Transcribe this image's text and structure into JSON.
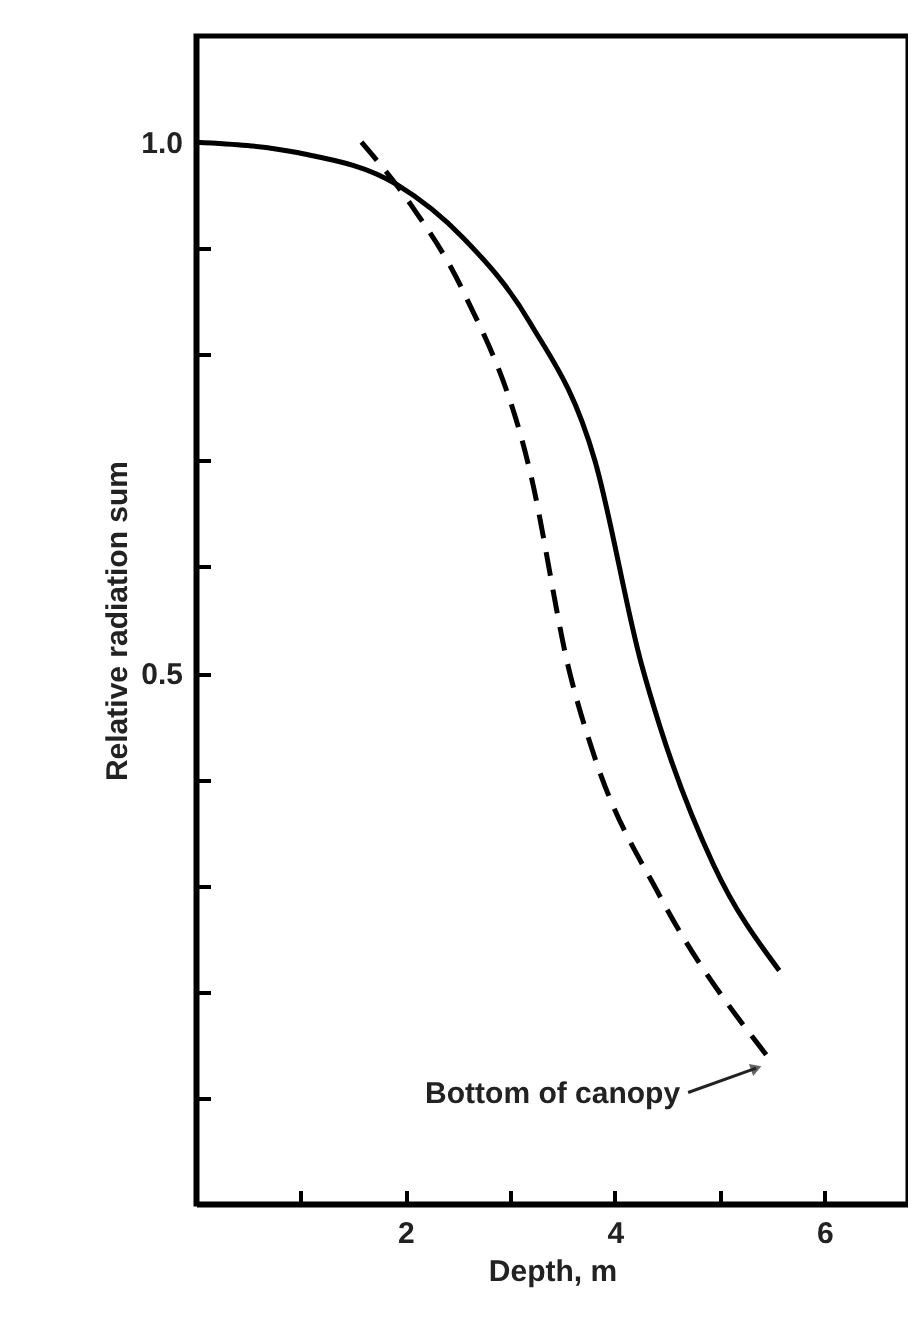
{
  "chart_data": {
    "type": "line",
    "xlabel": "Depth, m",
    "ylabel": "Relative radiation sum",
    "series": [
      {
        "color": "#000000",
        "line_style": "solid",
        "x": [
          0,
          0.98,
          1.92,
          2.55,
          3.19,
          3.81,
          4.25,
          4.43,
          4.94,
          5.57
        ],
        "values": [
          1.0,
          0.99,
          0.96,
          0.91,
          0.83,
          0.7,
          0.51,
          0.45,
          0.32,
          0.22
        ]
      },
      {
        "color": "#000000",
        "line_style": "dashed",
        "x": [
          1.58,
          2.06,
          2.55,
          3.19,
          3.57,
          3.81,
          4.43,
          5.45
        ],
        "values": [
          1.0,
          0.94,
          0.86,
          0.69,
          0.5,
          0.42,
          0.29,
          0.14
        ]
      }
    ],
    "annotations": [
      {
        "text": "Bottom of canopy",
        "x": 5.45,
        "y": 0.14
      }
    ],
    "xlim": [
      0,
      6.8
    ],
    "ylim": [
      0,
      1.1
    ],
    "xticks": [
      {
        "value": 1,
        "label": null
      },
      2,
      {
        "value": 3,
        "label": null
      },
      4,
      {
        "value": 5,
        "label": null
      },
      6
    ],
    "yticks": [
      {
        "value": 0.1,
        "label": null
      },
      {
        "value": 0.2,
        "label": null
      },
      {
        "value": 0.3,
        "label": null
      },
      {
        "value": 0.4,
        "label": null
      },
      0.5,
      {
        "value": 0.6,
        "label": null
      },
      {
        "value": 0.7,
        "label": null
      },
      {
        "value": 0.8,
        "label": null
      },
      {
        "value": 0.9,
        "label": null
      },
      {
        "value": 1,
        "label": "1.0"
      }
    ],
    "grid": false,
    "marker": "none"
  }
}
